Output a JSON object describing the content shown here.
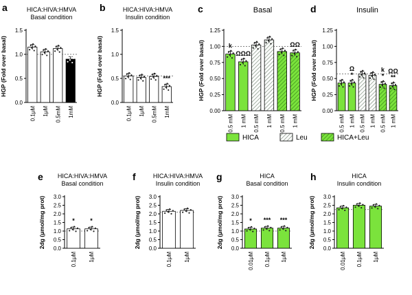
{
  "colors": {
    "green": "#7be33c",
    "black": "#000000",
    "white": "#ffffff",
    "axis": "#000000"
  },
  "legend": {
    "items": [
      "HICA",
      "Leu",
      "HICA+Leu"
    ]
  },
  "chart_data": [
    {
      "id": "a",
      "letter": "a",
      "type": "bar",
      "title": [
        "HICA:HIVA:HMVA",
        "Basal condition"
      ],
      "ylabel": "HGP (Fold over basal)",
      "ylim": [
        0,
        1.5
      ],
      "yticks": [
        "0.0",
        "0.5",
        "1.0",
        "1.5"
      ],
      "tickvals": [
        0,
        0.5,
        1.0,
        1.5
      ],
      "categories": [
        "0.1μM",
        "1μM",
        "0.5mM",
        "1mM"
      ],
      "values": [
        1.15,
        1.05,
        1.12,
        0.9
      ],
      "fills": [
        "white",
        "white",
        "white",
        "black"
      ],
      "refline": 1.0,
      "sig": [
        "",
        "",
        "",
        ""
      ]
    },
    {
      "id": "b",
      "letter": "b",
      "type": "bar",
      "title": [
        "HICA:HIVA:HMVA",
        "Insulin condition"
      ],
      "ylabel": "HGP (Fold over basal)",
      "ylim": [
        0,
        1.5
      ],
      "yticks": [
        "0.0",
        "0.5",
        "1.0",
        "1.5"
      ],
      "tickvals": [
        0,
        0.5,
        1.0,
        1.5
      ],
      "categories": [
        "0.1μM",
        "1μM",
        "0.5mM",
        "1mM"
      ],
      "values": [
        0.55,
        0.52,
        0.54,
        0.33
      ],
      "fills": [
        "white",
        "white",
        "white",
        "white"
      ],
      "refline": 0.55,
      "sig": [
        "",
        "",
        "",
        "***"
      ]
    },
    {
      "id": "c",
      "letter": "c",
      "type": "bar",
      "title": [
        "Basal"
      ],
      "ylabel": "HGP (Fold over basal)",
      "ylim": [
        0,
        1.25
      ],
      "yticks": [
        "0.00",
        "0.25",
        "0.50",
        "0.75",
        "1.00",
        "1.25"
      ],
      "tickvals": [
        0,
        0.25,
        0.5,
        0.75,
        1.0,
        1.25
      ],
      "categories": [
        "0.5 mM",
        "1 mM",
        "0.5 mM",
        "1 mM",
        "0.5 mM",
        "1 mM"
      ],
      "values": [
        0.88,
        0.76,
        1.02,
        1.1,
        0.92,
        0.9
      ],
      "styles": [
        "solid",
        "solid",
        "hatch",
        "hatch",
        "hatchgreen",
        "hatchgreen"
      ],
      "refline": 1.0,
      "sig": [
        "k",
        "ΩΩΩ",
        "",
        "",
        "",
        "ΩΩ"
      ]
    },
    {
      "id": "d",
      "letter": "d",
      "type": "bar",
      "title": [
        "Insulin"
      ],
      "ylabel": "HGP (Fold over basal)",
      "ylim": [
        0,
        1.25
      ],
      "yticks": [
        "0.00",
        "0.25",
        "0.50",
        "0.75",
        "1.00",
        "1.25"
      ],
      "tickvals": [
        0,
        0.25,
        0.5,
        0.75,
        1.0,
        1.25
      ],
      "categories": [
        "0.5 mM",
        "1 mM",
        "0.5 mM",
        "1 mM",
        "0.5 mM",
        "1 mM"
      ],
      "values": [
        0.43,
        0.43,
        0.57,
        0.55,
        0.41,
        0.39
      ],
      "styles": [
        "solid",
        "solid",
        "hatch",
        "hatch",
        "hatchgreen",
        "hatchgreen"
      ],
      "refline": 0.57,
      "sig": [
        "",
        "Ω\n*",
        "",
        "",
        "k\n*",
        "ΩΩ\n**"
      ]
    },
    {
      "id": "e",
      "letter": "e",
      "type": "bar",
      "title": [
        "HICA:HIVA:HMVA",
        "Basal condition"
      ],
      "ylabel": "2dg (μmol/mg prot)",
      "ylim": [
        0,
        3.0
      ],
      "yticks": [
        "0.0",
        "0.5",
        "1.0",
        "1.5",
        "2.0",
        "2.5",
        "3.0"
      ],
      "tickvals": [
        0,
        0.5,
        1.0,
        1.5,
        2.0,
        2.5,
        3.0
      ],
      "categories": [
        "0.1μM",
        "1μM"
      ],
      "values": [
        1.13,
        1.13
      ],
      "fills": [
        "white",
        "white"
      ],
      "refline": 1.0,
      "sig": [
        "*",
        "*"
      ]
    },
    {
      "id": "f",
      "letter": "f",
      "type": "bar",
      "title": [
        "HICA:HIVA:HMVA",
        "Insulin condition"
      ],
      "ylabel": "2dg (μmol/mg prot)",
      "ylim": [
        0,
        3.0
      ],
      "yticks": [
        "0.0",
        "0.5",
        "1.0",
        "1.5",
        "2.0",
        "2.5",
        "3.0"
      ],
      "tickvals": [
        0,
        0.5,
        1.0,
        1.5,
        2.0,
        2.5,
        3.0
      ],
      "categories": [
        "0.1μM",
        "1μM"
      ],
      "values": [
        2.15,
        2.2
      ],
      "fills": [
        "white",
        "white"
      ],
      "refline": 2.1,
      "sig": [
        "",
        ""
      ]
    },
    {
      "id": "g",
      "letter": "g",
      "type": "bar",
      "title": [
        "HICA",
        "Basal condition"
      ],
      "ylabel": "2dg (μmol/mg prot)",
      "ylim": [
        0,
        3.0
      ],
      "yticks": [
        "0.0",
        "0.5",
        "1.0",
        "1.5",
        "2.0",
        "2.5",
        "3.0"
      ],
      "tickvals": [
        0,
        0.5,
        1.0,
        1.5,
        2.0,
        2.5,
        3.0
      ],
      "categories": [
        "0.01μM",
        "0.1μM",
        "1μM"
      ],
      "values": [
        1.12,
        1.17,
        1.17
      ],
      "fills": [
        "green",
        "green",
        "green"
      ],
      "refline": 1.0,
      "sig": [
        "*",
        "***",
        "***"
      ]
    },
    {
      "id": "h",
      "letter": "h",
      "type": "bar",
      "title": [
        "HICA",
        "Insulin condition"
      ],
      "ylabel": "2dg (μmol/mg prot)",
      "ylim": [
        0,
        3.0
      ],
      "yticks": [
        "0.0",
        "0.5",
        "1.0",
        "1.5",
        "2.0",
        "2.5",
        "3.0"
      ],
      "tickvals": [
        0,
        0.5,
        1.0,
        1.5,
        2.0,
        2.5,
        3.0
      ],
      "categories": [
        "0.01μM",
        "0.1μM",
        "1μM"
      ],
      "values": [
        2.35,
        2.5,
        2.45
      ],
      "fills": [
        "green",
        "green",
        "green"
      ],
      "refline": 2.25,
      "sig": [
        "",
        "",
        ""
      ]
    }
  ]
}
